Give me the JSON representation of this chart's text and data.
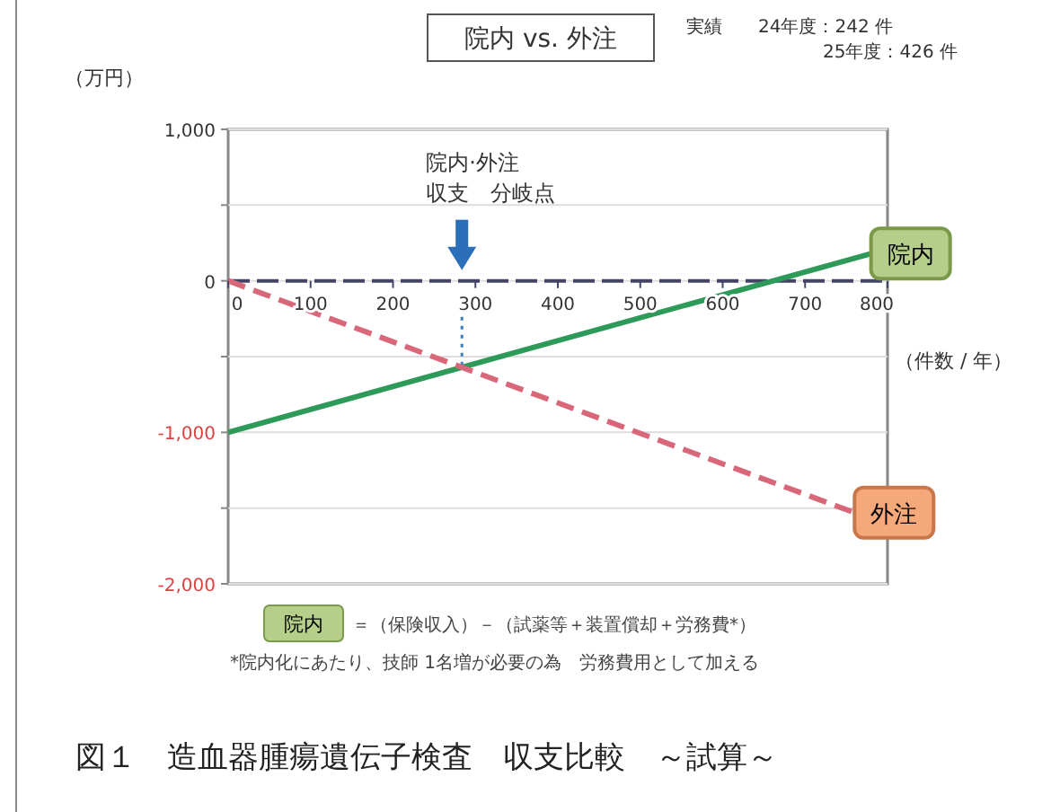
{
  "chart_data": {
    "type": "line",
    "title": "院内 vs. 外注",
    "subtitle": "実績　　24年度：242 件\n25年度：426 件",
    "ylabel": "（万円）",
    "xlabel": "（件数 / 年）",
    "xlim": [
      0,
      800
    ],
    "xticks": [
      0,
      100,
      200,
      300,
      400,
      500,
      600,
      700,
      800
    ],
    "ylim": [
      -2000,
      1000
    ],
    "yticks": [
      {
        "value": 1000,
        "label": "1,000"
      },
      {
        "value": 500,
        "label": null
      },
      0,
      {
        "value": -500,
        "label": null
      },
      {
        "value": -1000,
        "label": "-1,000"
      },
      {
        "value": -1500,
        "label": null
      },
      {
        "value": -2000,
        "label": "-2,000"
      }
    ],
    "grid": "y",
    "marker": "none",
    "series": [
      {
        "name": "院内",
        "color": "#2e9a5a",
        "x": [
          0,
          780
        ],
        "values": [
          -1000,
          180
        ],
        "line_style": "solid"
      },
      {
        "name": "外注",
        "color": "#d9677a",
        "x": [
          0,
          760
        ],
        "values": [
          0,
          -1530
        ],
        "line_style": "dashed"
      }
    ],
    "ref_lines": [
      {
        "axis": "y",
        "value": 0,
        "color": "#444466",
        "line_style": "dashed"
      }
    ],
    "annotations": [
      "院内·外注",
      "収支　分岐点",
      "＝（保険収入）－（試薬等＋装置償却＋労務費*）",
      "*院内化にあたり、技師 1名増が必要の為　労務費用として加える",
      "図１　造血器腫瘍遺伝子検査　収支比較　～試算～"
    ]
  }
}
